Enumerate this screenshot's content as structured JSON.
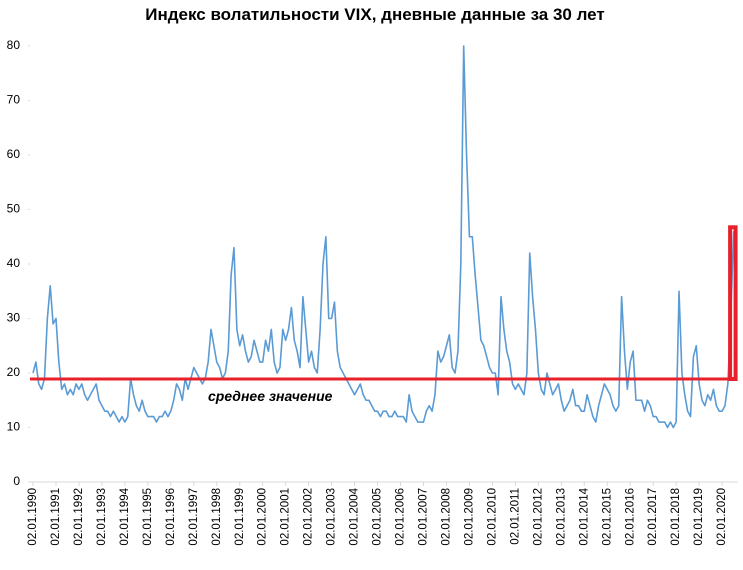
{
  "chart_data": {
    "type": "line",
    "title": "Индекс волатильности VIX, дневные данные за 30 лет",
    "ylim": [
      0,
      80
    ],
    "yticks": [
      0,
      10,
      20,
      30,
      40,
      50,
      60,
      70,
      80
    ],
    "categories": [
      "02.01.1990",
      null,
      null,
      null,
      null,
      null,
      null,
      null,
      "02.01.1991",
      null,
      null,
      null,
      null,
      null,
      null,
      null,
      "02.01.1992",
      null,
      null,
      null,
      null,
      null,
      null,
      null,
      "02.01.1993",
      null,
      null,
      null,
      null,
      null,
      null,
      null,
      "02.01.1994",
      null,
      null,
      null,
      null,
      null,
      null,
      null,
      "02.01.1995",
      null,
      null,
      null,
      null,
      null,
      null,
      null,
      "02.01.1996",
      null,
      null,
      null,
      null,
      null,
      null,
      null,
      "02.01.1997",
      null,
      null,
      null,
      null,
      null,
      null,
      null,
      "02.01.1998",
      null,
      null,
      null,
      null,
      null,
      null,
      null,
      "02.01.1999",
      null,
      null,
      null,
      null,
      null,
      null,
      null,
      "02.01.2000",
      null,
      null,
      null,
      null,
      null,
      null,
      null,
      "02.01.2001",
      null,
      null,
      null,
      null,
      null,
      null,
      null,
      "02.01.2002",
      null,
      null,
      null,
      null,
      null,
      null,
      null,
      "02.01.2003",
      null,
      null,
      null,
      null,
      null,
      null,
      null,
      "02.01.2004",
      null,
      null,
      null,
      null,
      null,
      null,
      null,
      "02.01.2005",
      null,
      null,
      null,
      null,
      null,
      null,
      null,
      "02.01.2006",
      null,
      null,
      null,
      null,
      null,
      null,
      null,
      "02.01.2007",
      null,
      null,
      null,
      null,
      null,
      null,
      null,
      "02.01.2008",
      null,
      null,
      null,
      null,
      null,
      null,
      null,
      "02.01.2009",
      null,
      null,
      null,
      null,
      null,
      null,
      null,
      "02.01.2010",
      null,
      null,
      null,
      null,
      null,
      null,
      null,
      "02.01.2011",
      null,
      null,
      null,
      null,
      null,
      null,
      null,
      "02.01.2012",
      null,
      null,
      null,
      null,
      null,
      null,
      null,
      "02.01.2013",
      null,
      null,
      null,
      null,
      null,
      null,
      null,
      "02.01.2014",
      null,
      null,
      null,
      null,
      null,
      null,
      null,
      "02.01.2015",
      null,
      null,
      null,
      null,
      null,
      null,
      null,
      "02.01.2016",
      null,
      null,
      null,
      null,
      null,
      null,
      null,
      "02.01.2017",
      null,
      null,
      null,
      null,
      null,
      null,
      null,
      "02.01.2018",
      null,
      null,
      null,
      null,
      null,
      null,
      null,
      "02.01.2019",
      null,
      null,
      null,
      null,
      null,
      null,
      null,
      "02.01.2020",
      null,
      null,
      null,
      null
    ],
    "series": [
      {
        "name": "VIX",
        "color": "#5b9bd5",
        "values": [
          20,
          22,
          18,
          17,
          19,
          30,
          36,
          29,
          30,
          22,
          17,
          18,
          16,
          17,
          16,
          18,
          17,
          18,
          16,
          15,
          16,
          17,
          18,
          15,
          14,
          13,
          13,
          12,
          13,
          12,
          11,
          12,
          11,
          12,
          19,
          16,
          14,
          13,
          15,
          13,
          12,
          12,
          12,
          11,
          12,
          12,
          13,
          12,
          13,
          15,
          18,
          17,
          15,
          19,
          17,
          19,
          21,
          20,
          19,
          18,
          19,
          22,
          28,
          25,
          22,
          21,
          19,
          20,
          24,
          38,
          43,
          28,
          25,
          27,
          24,
          22,
          23,
          26,
          24,
          22,
          22,
          26,
          24,
          28,
          22,
          20,
          21,
          28,
          26,
          28,
          32,
          26,
          24,
          21,
          34,
          28,
          22,
          24,
          21,
          20,
          28,
          40,
          45,
          30,
          30,
          33,
          24,
          21,
          20,
          19,
          18,
          17,
          16,
          17,
          18,
          16,
          15,
          15,
          14,
          13,
          13,
          12,
          13,
          13,
          12,
          12,
          13,
          12,
          12,
          12,
          11,
          16,
          13,
          12,
          11,
          11,
          11,
          13,
          14,
          13,
          16,
          24,
          22,
          23,
          25,
          27,
          21,
          20,
          24,
          40,
          80,
          60,
          45,
          45,
          38,
          32,
          26,
          25,
          23,
          21,
          20,
          20,
          16,
          34,
          28,
          24,
          22,
          18,
          17,
          18,
          17,
          16,
          20,
          42,
          34,
          28,
          20,
          17,
          16,
          20,
          18,
          16,
          17,
          18,
          15,
          13,
          14,
          15,
          17,
          14,
          14,
          13,
          13,
          16,
          14,
          12,
          11,
          14,
          16,
          18,
          17,
          16,
          14,
          13,
          14,
          34,
          24,
          17,
          22,
          24,
          15,
          15,
          15,
          13,
          15,
          14,
          12,
          12,
          11,
          11,
          11,
          10,
          11,
          10,
          11,
          35,
          20,
          16,
          13,
          12,
          23,
          25,
          18,
          15,
          14,
          16,
          15,
          17,
          14,
          13,
          13,
          14,
          18,
          30,
          46
        ]
      }
    ],
    "mean_line": {
      "value": 18.9,
      "label": "среднее значение",
      "color": "#e8202a"
    }
  }
}
